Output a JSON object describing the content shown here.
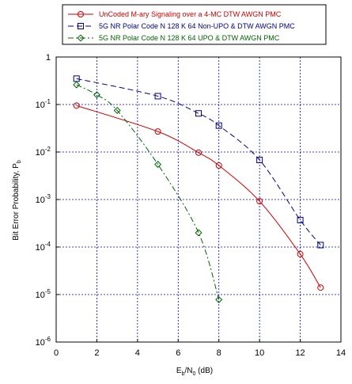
{
  "chart_data": {
    "type": "line",
    "title": "",
    "xlabel": {
      "base": "E",
      "sub1": "b",
      "mid": "/N",
      "sub2": "0",
      "unit": " (dB)"
    },
    "ylabel": {
      "base": "Bit Error Probability, P",
      "sub": "b"
    },
    "xlim": [
      0,
      14
    ],
    "ylim": [
      1e-06,
      1
    ],
    "yscale": "log",
    "grid": true,
    "legend_position": "top",
    "x_ticks": [
      "0",
      "2",
      "4",
      "6",
      "8",
      "10",
      "12",
      "14"
    ],
    "y_ticks": [
      {
        "base": "10",
        "exp": "-6"
      },
      {
        "base": "10",
        "exp": "-5"
      },
      {
        "base": "10",
        "exp": "-4"
      },
      {
        "base": "10",
        "exp": "-3"
      },
      {
        "base": "10",
        "exp": "-2"
      },
      {
        "base": "10",
        "exp": "-1"
      },
      {
        "base": "1",
        "exp": ""
      }
    ],
    "series": [
      {
        "name": "UnCoded M-ary Signaling over a 4-MC DTW AWGN PMC",
        "color": "#cc0000",
        "marker": "circle",
        "dash": "solid",
        "x": [
          1,
          5,
          7,
          8,
          10,
          12,
          13
        ],
        "y": [
          0.095,
          0.027,
          0.0097,
          0.0052,
          0.00092,
          7.1e-05,
          1.4e-05
        ]
      },
      {
        "name": "5G NR Polar Code N 128 K 64 Non-UPO & DTW AWGN PMC",
        "color": "#000080",
        "marker": "square",
        "dash": "dashed",
        "x": [
          1,
          5,
          7,
          8,
          10,
          12,
          13
        ],
        "y": [
          0.35,
          0.15,
          0.065,
          0.036,
          0.0068,
          0.00037,
          0.00011
        ]
      },
      {
        "name": "5G NR Polar Code N 128 K 64 UPO & DTW AWGN PMC",
        "color": "#006400",
        "marker": "diamond",
        "dash": "dashdot",
        "x": [
          1,
          2,
          3,
          5,
          7,
          8
        ],
        "y": [
          0.26,
          0.16,
          0.075,
          0.0055,
          0.0002,
          7.8e-06
        ]
      }
    ]
  }
}
